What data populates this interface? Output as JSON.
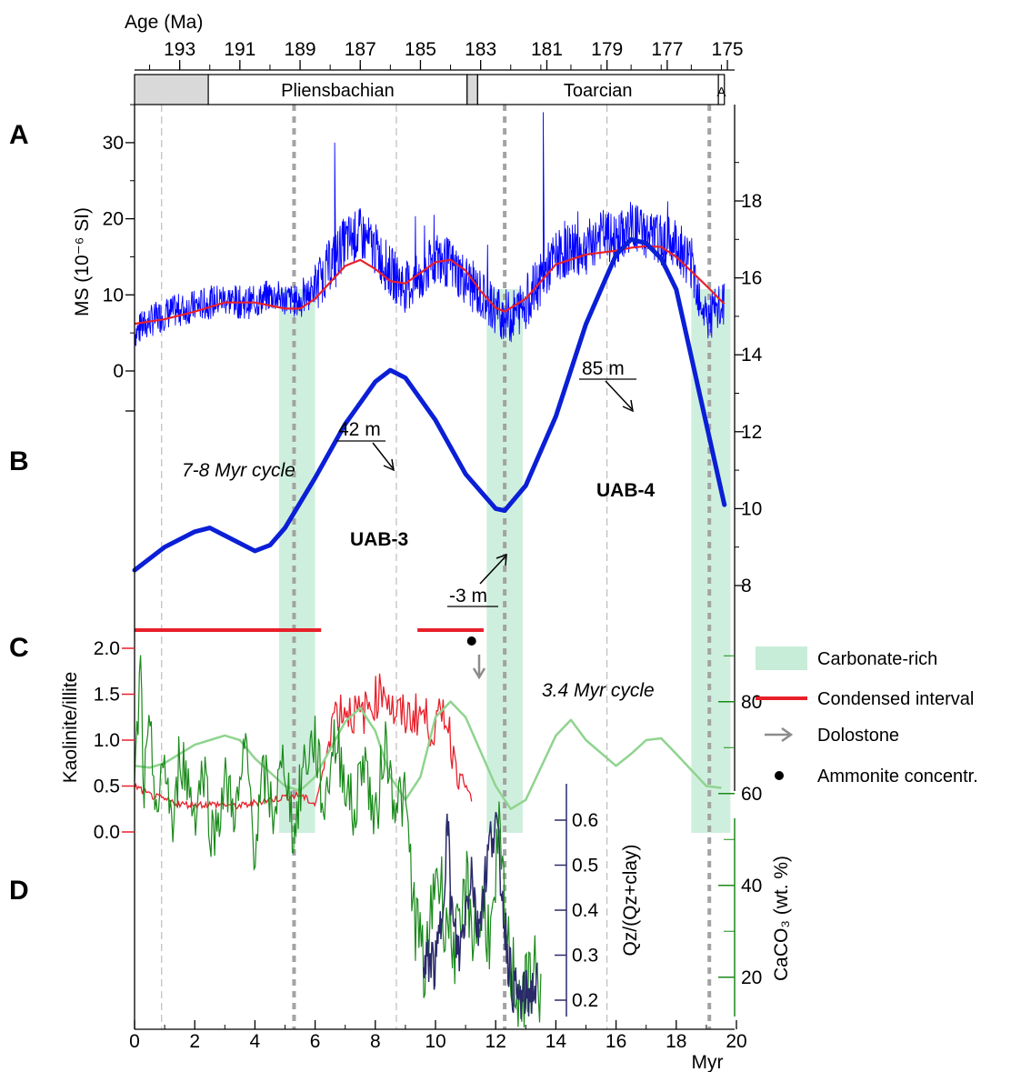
{
  "chart_data": {
    "type": "line",
    "x_axis": {
      "label": "Myr",
      "ticks": [
        "0",
        "2",
        "4",
        "6",
        "8",
        "10",
        "12",
        "14",
        "16",
        "18",
        "20"
      ],
      "range": [
        0,
        20
      ]
    },
    "top_axis": {
      "label": "Age (Ma)",
      "ticks": [
        "193",
        "191",
        "189",
        "187",
        "185",
        "183",
        "181",
        "179",
        "177",
        "175"
      ]
    },
    "stages": [
      {
        "name": "",
        "start": 0,
        "end": 2.45,
        "color": "#d9d9d9"
      },
      {
        "name": "Pliensbachian",
        "start": 2.45,
        "end": 11.05,
        "color": "#ffffff"
      },
      {
        "name": "",
        "start": 11.05,
        "end": 11.4,
        "color": "#d9d9d9"
      },
      {
        "name": "Toarcian",
        "start": 11.4,
        "end": 19.4,
        "color": "#ffffff"
      },
      {
        "name": "A",
        "start": 19.4,
        "end": 19.6,
        "color": "#ffffff"
      }
    ],
    "panel_labels": [
      "A",
      "B",
      "C",
      "D"
    ],
    "carbonate_rich_bands": [
      [
        4.8,
        6.0
      ],
      [
        11.7,
        12.9
      ],
      [
        18.5,
        19.8
      ]
    ],
    "cycle_lines": {
      "thick": [
        5.3,
        12.3,
        19.1
      ],
      "thin": [
        0.9,
        8.7,
        15.7
      ]
    },
    "panelA": {
      "ylabel": "MS (10⁻⁶ SI)",
      "yticks": [
        "0",
        "10",
        "20",
        "30"
      ],
      "series": [
        {
          "name": "MS",
          "color": "#0000ff",
          "x": [
            0,
            0.5,
            1,
            1.5,
            2,
            2.5,
            3,
            3.5,
            4,
            4.5,
            5,
            5.5,
            6,
            6.5,
            7,
            7.5,
            8,
            8.5,
            9,
            9.5,
            10,
            10.5,
            11,
            11.5,
            12,
            12.5,
            13,
            13.5,
            14,
            14.5,
            15,
            15.5,
            16,
            16.5,
            17,
            17.5,
            18,
            18.5,
            19,
            19.5,
            19.6
          ],
          "values": [
            5,
            6.5,
            7.5,
            8,
            8.5,
            9,
            9.5,
            9,
            9,
            10,
            9.5,
            9,
            11,
            14,
            17,
            18,
            16,
            13,
            11,
            12,
            15,
            14,
            12,
            10,
            8,
            7,
            9,
            12,
            15,
            16,
            16,
            18,
            17,
            19,
            18,
            17,
            17,
            14,
            7,
            8,
            9
          ]
        },
        {
          "name": "MS trend",
          "color": "#e8202a",
          "x": [
            0,
            1,
            2,
            3,
            4,
            5,
            5.5,
            6,
            7,
            7.5,
            8,
            8.5,
            9,
            10,
            10.5,
            11,
            11.5,
            12,
            12.3,
            13,
            14,
            15,
            16,
            16.5,
            17,
            17.5,
            18,
            19,
            19.6
          ],
          "values": [
            6.2,
            6.8,
            7.8,
            9,
            9,
            8.2,
            8.2,
            9.5,
            13.8,
            14.6,
            13.4,
            11.8,
            11.5,
            14.3,
            14.6,
            13.2,
            10.5,
            8.3,
            7.8,
            9.5,
            14,
            15.3,
            15.8,
            16.2,
            16.4,
            16.3,
            15,
            11.2,
            8.8
          ]
        }
      ],
      "peaks": [
        {
          "x": 6.65,
          "y": 30
        },
        {
          "x": 13.58,
          "y": 34
        }
      ]
    },
    "panelB": {
      "yticks": [
        "8",
        "10",
        "12",
        "14",
        "16",
        "18"
      ],
      "series": [
        {
          "name": "Sea-level curve",
          "color": "#0a1fd6",
          "x": [
            0,
            1,
            2,
            2.5,
            3,
            4,
            4.5,
            5,
            6,
            7,
            8,
            8.5,
            9,
            10,
            11,
            12,
            12.3,
            13,
            14,
            15,
            16,
            16.5,
            17,
            17.5,
            18,
            19,
            19.6
          ],
          "values": [
            8.4,
            9,
            9.4,
            9.5,
            9.3,
            8.9,
            9.05,
            9.5,
            10.8,
            12.2,
            13.3,
            13.6,
            13.4,
            12.3,
            10.9,
            10.0,
            9.95,
            10.6,
            12.4,
            14.8,
            16.6,
            17.0,
            16.9,
            16.5,
            15.7,
            12.2,
            10.1
          ]
        }
      ],
      "annotations": [
        {
          "text": "7-8 Myr cycle",
          "x": 3.5,
          "y": 14.2
        },
        {
          "text": "UAB-3",
          "x": 8.4,
          "y": 11
        },
        {
          "text": "UAB-4",
          "x": 17.0,
          "y": 13
        },
        {
          "text": "42 m",
          "x": 7.5,
          "y": 15.6
        },
        {
          "text": "85 m",
          "x": 14.9,
          "y": 18.8
        },
        {
          "text": "-3 m",
          "x": 10.9,
          "y": 8.5
        }
      ]
    },
    "panelC": {
      "ylabel": "Kaolinite/illite",
      "yticks": [
        "0.0",
        "0.5",
        "1.0",
        "1.5",
        "2.0"
      ],
      "series": [
        {
          "name": "Kaolinite/illite",
          "color": "#e8202a",
          "x": [
            0,
            0.5,
            1,
            1.5,
            2,
            2.5,
            3,
            3.5,
            4,
            4.5,
            5,
            5.5,
            6,
            6.3,
            6.6,
            7,
            7.5,
            8,
            8.3,
            8.6,
            9,
            9.5,
            10,
            10.3,
            10.6,
            11,
            11.2
          ],
          "values": [
            0.5,
            0.4,
            0.35,
            0.3,
            0.3,
            0.3,
            0.3,
            0.28,
            0.32,
            0.35,
            0.38,
            0.4,
            0.3,
            0.7,
            1.3,
            1.35,
            1.25,
            1.45,
            1.6,
            1.3,
            1.25,
            1.3,
            1.1,
            1.35,
            0.85,
            0.5,
            0.35
          ]
        },
        {
          "name": "3.4 Myr cycle",
          "color": "#8fd48f",
          "x": [
            0,
            0.5,
            1,
            2,
            2.5,
            3,
            3.5,
            4,
            5,
            5.5,
            6,
            7,
            7.5,
            8,
            8.5,
            9,
            9.5,
            10,
            10.5,
            11,
            12,
            12.5,
            13,
            14,
            14.5,
            15,
            16,
            16.5,
            17,
            17.5,
            18,
            19,
            19.5
          ],
          "values": [
            0.72,
            0.7,
            0.75,
            0.95,
            1.0,
            1.05,
            1.0,
            0.8,
            0.5,
            0.45,
            0.6,
            1.2,
            1.35,
            1.1,
            0.6,
            0.35,
            0.6,
            1.25,
            1.42,
            1.25,
            0.5,
            0.25,
            0.35,
            1.05,
            1.22,
            1.0,
            0.72,
            0.85,
            1.0,
            1.02,
            0.85,
            0.5,
            0.48
          ]
        }
      ],
      "condensed_intervals": [
        [
          0,
          6.2
        ],
        [
          9.4,
          11.6
        ]
      ],
      "dolostone_x": 11.45,
      "ammonite_x": 11.2,
      "annotation": "3.4 Myr cycle"
    },
    "panelD": {
      "ylabel_left": "Qz/(Qz+clay)",
      "yticks_left": [
        "0.2",
        "0.3",
        "0.4",
        "0.5",
        "0.6"
      ],
      "ylabel_right": "CaCO₃ (wt. %)",
      "yticks_right": [
        "20",
        "40",
        "60",
        "80"
      ],
      "series": [
        {
          "name": "CaCO₃",
          "color": "#1a8a1a",
          "x": [
            0,
            0.2,
            0.3,
            0.5,
            0.8,
            1,
            1.3,
            1.5,
            2,
            2.3,
            2.6,
            3,
            3.4,
            3.7,
            4,
            4.3,
            4.6,
            5,
            5.3,
            5.6,
            6,
            6.3,
            6.6,
            7,
            7.3,
            7.6,
            8,
            8.3,
            8.6,
            9,
            9.2,
            9.4,
            9.7,
            10,
            10.3,
            10.5,
            10.8,
            11,
            11.3,
            11.6,
            11.9,
            12.1,
            12.4,
            12.7,
            13,
            13.2,
            13.5
          ],
          "values": [
            60,
            88,
            60,
            72,
            55,
            68,
            50,
            70,
            56,
            66,
            50,
            62,
            56,
            70,
            48,
            64,
            56,
            68,
            50,
            66,
            72,
            56,
            72,
            64,
            54,
            70,
            52,
            72,
            60,
            58,
            40,
            30,
            20,
            45,
            35,
            30,
            25,
            40,
            30,
            35,
            28,
            50,
            25,
            18,
            15,
            22,
            18
          ]
        },
        {
          "name": "Qz/(Qz+clay)",
          "color": "#2a2a6a",
          "x": [
            9.6,
            9.8,
            10,
            10.2,
            10.4,
            10.5,
            10.6,
            10.8,
            11,
            11.2,
            11.4,
            11.6,
            11.8,
            12,
            12.2,
            12.4,
            12.6,
            12.8,
            13,
            13.2,
            13.4
          ],
          "values": [
            0.25,
            0.3,
            0.27,
            0.38,
            0.6,
            0.45,
            0.35,
            0.3,
            0.4,
            0.5,
            0.35,
            0.45,
            0.55,
            0.6,
            0.45,
            0.3,
            0.22,
            0.2,
            0.21,
            0.22,
            0.23
          ]
        }
      ]
    },
    "legend": [
      {
        "label": "Carbonate-rich",
        "kind": "band",
        "color": "#c7ecd8"
      },
      {
        "label": "Condensed interval",
        "kind": "line",
        "color": "#e8202a"
      },
      {
        "label": "Dolostone",
        "kind": "arrow",
        "color": "#8c8c8c"
      },
      {
        "label": "Ammonite concentr.",
        "kind": "dot",
        "color": "#000000"
      }
    ],
    "legend_position": "right"
  }
}
